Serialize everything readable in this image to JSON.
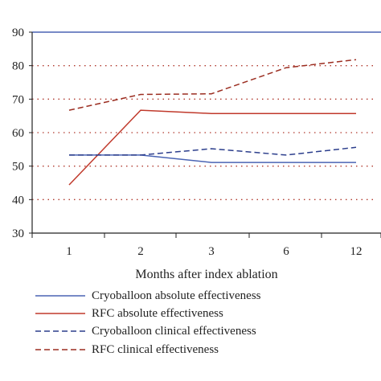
{
  "chart_data": {
    "type": "line",
    "title": "",
    "xlabel": "Months after index ablation",
    "ylabel": "",
    "categories": [
      "1",
      "2",
      "3",
      "6",
      "12"
    ],
    "ylim": [
      30,
      90
    ],
    "yticks": [
      30,
      40,
      50,
      60,
      70,
      80,
      90
    ],
    "grid": "horizontal dotted red",
    "legend_position": "bottom",
    "series": [
      {
        "name": "Cryoballoon absolute effectiveness",
        "values": [
          53.3,
          53.3,
          51.1,
          51.1,
          51.1
        ],
        "color": "#4a64b4",
        "dash": "solid"
      },
      {
        "name": "RFC absolute effectiveness",
        "values": [
          44.4,
          66.7,
          65.7,
          65.7,
          65.7
        ],
        "color": "#c0392b",
        "dash": "solid"
      },
      {
        "name": "Cryoballoon clinical effectiveness",
        "values": [
          53.3,
          53.3,
          55.2,
          53.3,
          55.6
        ],
        "color": "#2c3e8c",
        "dash": "dashed"
      },
      {
        "name": "RFC clinical effectiveness",
        "values": [
          66.7,
          71.4,
          71.6,
          79.4,
          81.8
        ],
        "color": "#9b2d20",
        "dash": "dashed"
      }
    ]
  }
}
